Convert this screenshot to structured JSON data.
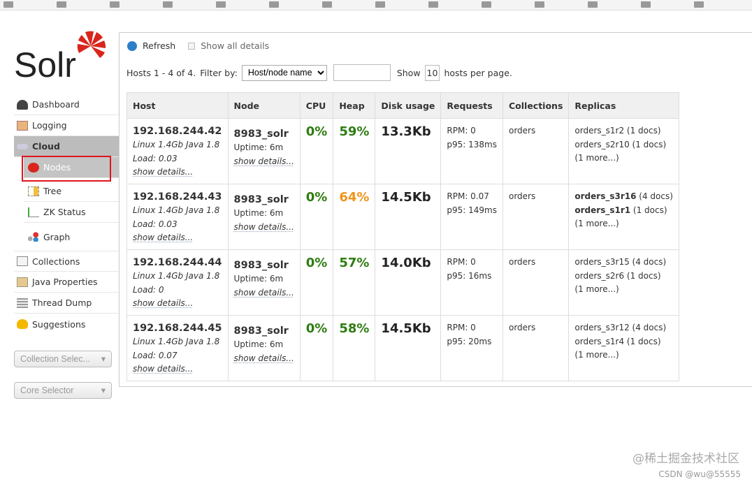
{
  "sidebar": {
    "logo_text": "Solr",
    "items": [
      {
        "label": "Dashboard"
      },
      {
        "label": "Logging"
      },
      {
        "label": "Cloud"
      },
      {
        "label": "Nodes"
      },
      {
        "label": "Tree"
      },
      {
        "label": "ZK Status"
      },
      {
        "label": "Graph"
      },
      {
        "label": "Collections"
      },
      {
        "label": "Java Properties"
      },
      {
        "label": "Thread Dump"
      },
      {
        "label": "Suggestions"
      }
    ],
    "collection_selector": "Collection Selec...",
    "core_selector": "Core Selector"
  },
  "toolbar": {
    "refresh": "Refresh",
    "show_all": "Show all details"
  },
  "filter": {
    "hosts": "Hosts 1 - 4 of 4.",
    "filter_by": "Filter by:",
    "filter_option": "Host/node name",
    "filter_value": "",
    "show": "Show",
    "per_page": "10",
    "per_page_suffix": "hosts per page."
  },
  "table": {
    "headers": [
      "Host",
      "Node",
      "CPU",
      "Heap",
      "Disk usage",
      "Requests",
      "Collections",
      "Replicas"
    ],
    "rows": [
      {
        "host": "192.168.244.42",
        "sys": "Linux 1.4Gb Java 1.8",
        "load": "Load: 0.03",
        "details": "show details...",
        "node": "8983_solr",
        "uptime": "Uptime: 6m",
        "node_details": "show details...",
        "cpu": "0%",
        "heap": "59%",
        "disk": "13.3Kb",
        "rpm": "RPM: 0",
        "p95": "p95: 138ms",
        "collections": "orders",
        "r1": "orders_s1r2",
        "r1d": " (1 docs)",
        "r2": "orders_s2r10",
        "r2d": " (1 docs)",
        "more": "(1 more...)"
      },
      {
        "host": "192.168.244.43",
        "sys": "Linux 1.4Gb Java 1.8",
        "load": "Load: 0.03",
        "details": "show details...",
        "node": "8983_solr",
        "uptime": "Uptime: 6m",
        "node_details": "show details...",
        "cpu": "0%",
        "heap": "64%",
        "disk": "14.5Kb",
        "rpm": "RPM: 0.07",
        "p95": "p95: 149ms",
        "collections": "orders",
        "r1": "orders_s3r16",
        "r1d": " (4 docs)",
        "r2": "orders_s1r1",
        "r2d": " (1 docs)",
        "more": "(1 more...)"
      },
      {
        "host": "192.168.244.44",
        "sys": "Linux 1.4Gb Java 1.8",
        "load": "Load: 0",
        "details": "show details...",
        "node": "8983_solr",
        "uptime": "Uptime: 6m",
        "node_details": "show details...",
        "cpu": "0%",
        "heap": "57%",
        "disk": "14.0Kb",
        "rpm": "RPM: 0",
        "p95": "p95: 16ms",
        "collections": "orders",
        "r1": "orders_s3r15",
        "r1d": " (4 docs)",
        "r2": "orders_s2r6",
        "r2d": " (1 docs)",
        "more": "(1 more...)"
      },
      {
        "host": "192.168.244.45",
        "sys": "Linux 1.4Gb Java 1.8",
        "load": "Load: 0.07",
        "details": "show details...",
        "node": "8983_solr",
        "uptime": "Uptime: 6m",
        "node_details": "show details...",
        "cpu": "0%",
        "heap": "58%",
        "disk": "14.5Kb",
        "rpm": "RPM: 0",
        "p95": "p95: 20ms",
        "collections": "orders",
        "r1": "orders_s3r12",
        "r1d": " (4 docs)",
        "r2": "orders_s1r4",
        "r2d": " (1 docs)",
        "more": "(1 more...)"
      }
    ]
  },
  "watermark": {
    "line1": "@稀土掘金技术社区",
    "line2": "CSDN @wu@55555"
  },
  "colors": {
    "green": "#2e7d11",
    "orange": "#f0931a",
    "highlight": "#e0141e"
  }
}
